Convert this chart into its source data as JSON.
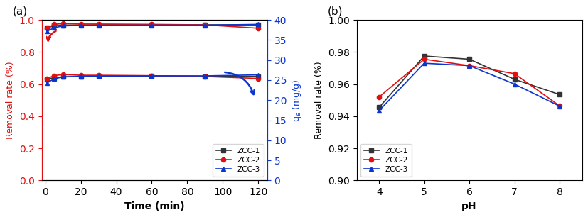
{
  "panel_a": {
    "time_x": [
      1,
      5,
      10,
      20,
      30,
      60,
      90,
      120
    ],
    "removal_ZCC1": [
      0.95,
      0.963,
      0.967,
      0.968,
      0.969,
      0.97,
      0.969,
      0.969
    ],
    "removal_ZCC2": [
      0.948,
      0.972,
      0.977,
      0.974,
      0.974,
      0.972,
      0.969,
      0.948
    ],
    "removal_ZCC3": [
      0.93,
      0.95,
      0.963,
      0.965,
      0.966,
      0.967,
      0.967,
      0.972
    ],
    "qe_ZCC1": [
      25.2,
      25.6,
      25.8,
      25.9,
      26.0,
      26.0,
      25.9,
      25.9
    ],
    "qe_ZCC2": [
      25.4,
      26.1,
      26.4,
      26.2,
      26.2,
      26.1,
      25.9,
      25.4
    ],
    "qe_ZCC3": [
      24.3,
      25.3,
      25.8,
      25.95,
      26.0,
      26.05,
      26.05,
      26.3
    ],
    "removal_ylim": [
      0.0,
      1.0
    ],
    "qe_ylim": [
      0,
      40
    ],
    "xlim": [
      -2,
      125
    ],
    "xlabel": "Time (min)",
    "ylabel_left": "Removal rate (%)",
    "ylabel_right": "q$_e$ (mg/g)",
    "yticks_left": [
      0.0,
      0.2,
      0.4,
      0.6,
      0.8,
      1.0
    ],
    "yticks_right": [
      0,
      5,
      10,
      15,
      20,
      25,
      30,
      35,
      40
    ],
    "xticks": [
      0,
      20,
      40,
      60,
      80,
      100,
      120
    ]
  },
  "panel_b": {
    "ph_x": [
      4,
      5,
      6,
      7,
      8
    ],
    "removal_ZCC1": [
      0.9455,
      0.9775,
      0.9755,
      0.963,
      0.9535
    ],
    "removal_ZCC2": [
      0.952,
      0.9755,
      0.9715,
      0.9665,
      0.9465
    ],
    "removal_ZCC3": [
      0.9435,
      0.973,
      0.9715,
      0.96,
      0.9463
    ],
    "ylim": [
      0.9,
      1.0
    ],
    "xlim": [
      3.5,
      8.5
    ],
    "xlabel": "pH",
    "ylabel": "Removal rate (%)",
    "yticks": [
      0.9,
      0.92,
      0.94,
      0.96,
      0.98,
      1.0
    ],
    "xticks": [
      4,
      5,
      6,
      7,
      8
    ]
  },
  "colors": {
    "ZCC1": "#333333",
    "ZCC2": "#e01010",
    "ZCC3": "#0a35d0"
  },
  "color_left": "#e01010",
  "color_right": "#0a35d0"
}
